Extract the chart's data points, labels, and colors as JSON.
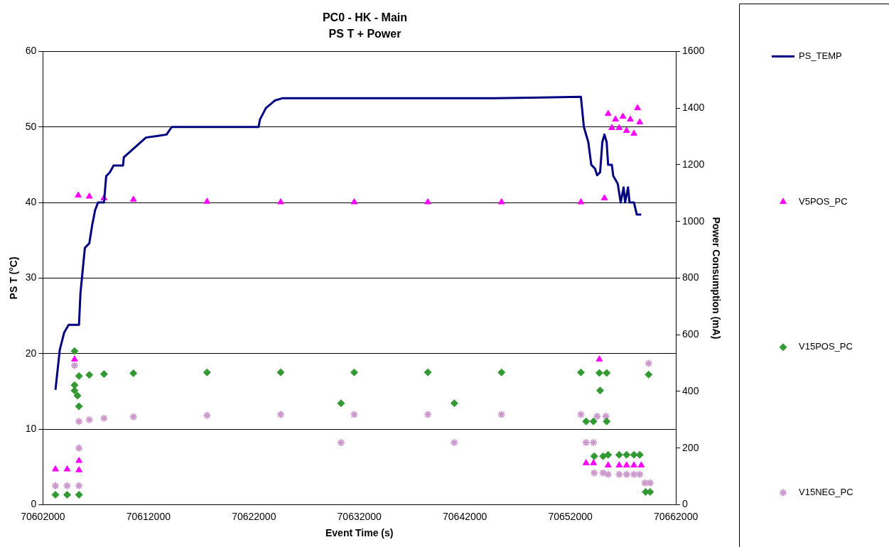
{
  "chart_data": {
    "type": "scatter",
    "title": "PC0 - HK - Main",
    "subtitle": "PS T + Power",
    "xlabel": "Event Time (s)",
    "ylabel": "PS T (°C)",
    "y2label": "Power Consumption (mA)",
    "xlim": [
      70602000,
      70662000
    ],
    "xticks": [
      70602000,
      70612000,
      70622000,
      70632000,
      70642000,
      70652000,
      70662000
    ],
    "ylim": [
      0,
      60
    ],
    "yticks": [
      0,
      10,
      20,
      30,
      40,
      50,
      60
    ],
    "y2lim": [
      0,
      1600
    ],
    "y2ticks": [
      0,
      200,
      400,
      600,
      800,
      1000,
      1200,
      1400,
      1600
    ],
    "grid": "y",
    "legend": "right",
    "series": [
      {
        "name": "PS_TEMP",
        "type": "line",
        "marker": "none",
        "line_style": "solid",
        "color": "#000080",
        "x": [
          70603190,
          70603600,
          70604020,
          70604440,
          70605420,
          70605560,
          70605770,
          70605980,
          70606400,
          70606670,
          70606950,
          70607230,
          70607790,
          70608000,
          70608350,
          70608700,
          70609600,
          70609670,
          70611770,
          70612810,
          70613720,
          70614210,
          70622440,
          70622580,
          70623140,
          70623980,
          70624680,
          70644770,
          70653000,
          70653140,
          70653280,
          70653700,
          70653980,
          70654330,
          70654540,
          70654820,
          70655030,
          70655230,
          70655440,
          70655580,
          70655930,
          70656070,
          70656490,
          70656770,
          70657050,
          70657190,
          70657470,
          70657610,
          70658030,
          70658300,
          70658720
        ],
        "values": [
          15.2,
          20.5,
          22.8,
          23.8,
          23.8,
          28,
          31,
          34,
          34.6,
          37,
          39,
          40,
          40,
          43.5,
          44,
          44.9,
          44.9,
          46,
          48.6,
          48.8,
          49,
          50,
          50,
          51,
          52.5,
          53.5,
          53.8,
          53.8,
          54,
          52,
          50,
          48,
          45,
          44.5,
          43.6,
          44,
          48,
          49,
          48,
          45,
          45,
          43.5,
          42.5,
          40,
          42,
          40,
          42,
          40,
          40,
          38.4,
          38.4
        ]
      },
      {
        "name": "V5POS_PC",
        "axis": "y2",
        "marker": "triangle",
        "color": "#ff00ff",
        "x": [
          70603190,
          70604300,
          70605420,
          70605420,
          70605000,
          70605350,
          70606400,
          70607790,
          70610580,
          70617560,
          70624540,
          70631510,
          70638490,
          70645470,
          70653000,
          70653490,
          70654190,
          70654750,
          70655230,
          70655580,
          70655930,
          70656280,
          70656630,
          70656980,
          70657330,
          70657680,
          70658030,
          70658370,
          70658580,
          70655580,
          70656630,
          70657330,
          70658030,
          70658720
        ],
        "values": [
          125,
          125,
          122,
          155,
          513,
          1092,
          1088,
          1082,
          1077,
          1070,
          1068,
          1068,
          1068,
          1068,
          1068,
          147,
          147,
          513,
          1082,
          1380,
          1330,
          1360,
          1330,
          1370,
          1320,
          1360,
          1310,
          1400,
          1350,
          139,
          139,
          139,
          139,
          139
        ]
      },
      {
        "name": "V15POS_PC",
        "axis": "y2",
        "marker": "diamond",
        "color": "#339933",
        "x": [
          70603190,
          70604300,
          70605420,
          70605000,
          70605000,
          70605000,
          70605280,
          70605420,
          70605420,
          70606400,
          70607790,
          70610580,
          70617560,
          70624540,
          70630260,
          70631510,
          70638490,
          70641000,
          70645470,
          70653000,
          70653490,
          70654190,
          70654260,
          70654820,
          70655100,
          70654750,
          70655440,
          70655440,
          70655580,
          70656630,
          70657330,
          70658030,
          70658580,
          70659140,
          70659420,
          70659560
        ],
        "values": [
          35,
          35,
          35,
          542,
          422,
          403,
          385,
          347,
          454,
          458,
          461,
          464,
          467,
          467,
          358,
          467,
          467,
          358,
          467,
          467,
          294,
          294,
          171,
          403,
          171,
          465,
          465,
          294,
          176,
          176,
          176,
          176,
          176,
          45,
          459,
          45
        ]
      },
      {
        "name": "V15NEG_PC",
        "axis": "y2",
        "marker": "cross",
        "color": "#cc99cc",
        "x": [
          70603190,
          70604300,
          70605420,
          70605000,
          70605420,
          70605420,
          70606400,
          70607790,
          70610580,
          70617560,
          70624540,
          70630260,
          70631510,
          70638490,
          70641000,
          70645470,
          70653000,
          70653490,
          70654190,
          70654260,
          70655100,
          70654540,
          70655370,
          70655580,
          70656630,
          70657330,
          70658030,
          70658580,
          70659070,
          70659560,
          70659420
        ],
        "values": [
          67,
          67,
          67,
          491,
          200,
          294,
          300,
          305,
          310,
          315,
          318,
          219,
          318,
          318,
          219,
          318,
          318,
          219,
          219,
          112,
          112,
          312,
          312,
          107,
          107,
          107,
          107,
          107,
          77,
          77,
          499
        ]
      }
    ]
  }
}
